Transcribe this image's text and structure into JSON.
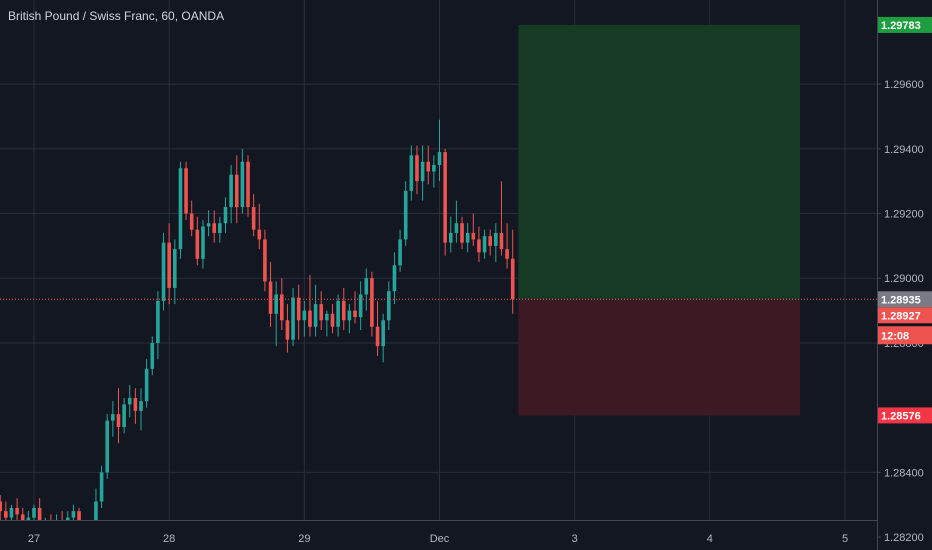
{
  "header": {
    "title": "British Pound / Swiss Franc, 60, OANDA"
  },
  "colors": {
    "up": "#26a69a",
    "down": "#ef5350",
    "background": "#131722",
    "grid": "#2a2e39",
    "profit_zone": "#163a24",
    "loss_zone": "#3d1a23",
    "target": "#1e9e3e",
    "stop": "#f23645",
    "last": "#787b86"
  },
  "chart_data": {
    "type": "candlestick",
    "title": "British Pound / Swiss Franc, 60, OANDA",
    "y_ticks": [
      1.282,
      1.284,
      1.288,
      1.29,
      1.292,
      1.294,
      1.296
    ],
    "y_tick_labels": [
      "1.28200",
      "1.28400",
      "1.28800",
      "1.29000",
      "1.29200",
      "1.29400",
      "1.29600"
    ],
    "x_ticks": [
      {
        "label": "27",
        "x": 0
      },
      {
        "label": "28",
        "x": 24
      },
      {
        "label": "29",
        "x": 48
      },
      {
        "label": "Dec",
        "x": 72
      },
      {
        "label": "3",
        "x": 96
      },
      {
        "label": "4",
        "x": 120
      },
      {
        "label": "5",
        "x": 144
      }
    ],
    "ylim": [
      1.2816,
      1.2986
    ],
    "xlim": [
      -6,
      150
    ],
    "candles": [
      [
        -6,
        1.2831,
        1.2833,
        1.2825,
        1.2828
      ],
      [
        -5,
        1.2828,
        1.2831,
        1.2823,
        1.2826
      ],
      [
        -4,
        1.2826,
        1.283,
        1.2821,
        1.2829
      ],
      [
        -3,
        1.2829,
        1.2832,
        1.2825,
        1.2827
      ],
      [
        -2,
        1.2827,
        1.2829,
        1.2821,
        1.2823
      ],
      [
        -1,
        1.2823,
        1.2828,
        1.282,
        1.2826
      ],
      [
        0,
        1.2826,
        1.283,
        1.2824,
        1.2829
      ],
      [
        1,
        1.2829,
        1.2832,
        1.282,
        1.2822
      ],
      [
        2,
        1.2822,
        1.2826,
        1.2818,
        1.2824
      ],
      [
        3,
        1.2824,
        1.2827,
        1.282,
        1.2822
      ],
      [
        4,
        1.2822,
        1.2827,
        1.2819,
        1.2825
      ],
      [
        5,
        1.2825,
        1.2828,
        1.2822,
        1.2823
      ],
      [
        6,
        1.2823,
        1.2828,
        1.2819,
        1.2826
      ],
      [
        7,
        1.2826,
        1.283,
        1.2823,
        1.2828
      ],
      [
        8,
        1.2828,
        1.2829,
        1.2818,
        1.282
      ],
      [
        9,
        1.282,
        1.2822,
        1.2815,
        1.2818
      ],
      [
        10,
        1.2818,
        1.2823,
        1.2816,
        1.2821
      ],
      [
        11,
        1.2821,
        1.2835,
        1.2817,
        1.2831
      ],
      [
        12,
        1.2831,
        1.2842,
        1.2829,
        1.284
      ],
      [
        13,
        1.284,
        1.2858,
        1.2838,
        1.2856
      ],
      [
        14,
        1.2856,
        1.2862,
        1.2851,
        1.2858
      ],
      [
        15,
        1.2858,
        1.2866,
        1.2849,
        1.2854
      ],
      [
        16,
        1.2854,
        1.2863,
        1.2852,
        1.2861
      ],
      [
        17,
        1.2861,
        1.2867,
        1.2857,
        1.2863
      ],
      [
        18,
        1.2863,
        1.2866,
        1.2855,
        1.2859
      ],
      [
        19,
        1.2859,
        1.2866,
        1.2853,
        1.2862
      ],
      [
        20,
        1.2862,
        1.2875,
        1.286,
        1.2872
      ],
      [
        21,
        1.2872,
        1.2882,
        1.287,
        1.288
      ],
      [
        22,
        1.288,
        1.2896,
        1.2875,
        1.2893
      ],
      [
        23,
        1.2893,
        1.2914,
        1.289,
        1.2911
      ],
      [
        24,
        1.2911,
        1.2917,
        1.2892,
        1.2897
      ],
      [
        25,
        1.2897,
        1.2912,
        1.2892,
        1.2909
      ],
      [
        26,
        1.2909,
        1.2936,
        1.2906,
        1.2934
      ],
      [
        27,
        1.2934,
        1.2936,
        1.2918,
        1.292
      ],
      [
        28,
        1.292,
        1.2924,
        1.2913,
        1.2915
      ],
      [
        29,
        1.2915,
        1.2919,
        1.2904,
        1.2906
      ],
      [
        30,
        1.2906,
        1.2918,
        1.2903,
        1.2916
      ],
      [
        31,
        1.2916,
        1.2921,
        1.2913,
        1.2917
      ],
      [
        32,
        1.2917,
        1.2921,
        1.2911,
        1.2914
      ],
      [
        33,
        1.2914,
        1.2919,
        1.2911,
        1.2917
      ],
      [
        34,
        1.2917,
        1.2925,
        1.2914,
        1.2922
      ],
      [
        35,
        1.2922,
        1.2935,
        1.2917,
        1.2932
      ],
      [
        36,
        1.2932,
        1.2938,
        1.2917,
        1.2922
      ],
      [
        37,
        1.2922,
        1.294,
        1.292,
        1.2936
      ],
      [
        38,
        1.2936,
        1.2938,
        1.2919,
        1.2922
      ],
      [
        39,
        1.2922,
        1.2926,
        1.2913,
        1.2915
      ],
      [
        40,
        1.2915,
        1.2923,
        1.2909,
        1.2912
      ],
      [
        41,
        1.2912,
        1.2915,
        1.2896,
        1.2899
      ],
      [
        42,
        1.2899,
        1.2905,
        1.2885,
        1.2889
      ],
      [
        43,
        1.2889,
        1.2899,
        1.2879,
        1.2895
      ],
      [
        44,
        1.2895,
        1.29,
        1.2884,
        1.2887
      ],
      [
        45,
        1.2887,
        1.2892,
        1.2877,
        1.2881
      ],
      [
        46,
        1.2881,
        1.2897,
        1.2879,
        1.2894
      ],
      [
        47,
        1.2894,
        1.2898,
        1.2881,
        1.2887
      ],
      [
        48,
        1.2887,
        1.2893,
        1.2882,
        1.289
      ],
      [
        49,
        1.289,
        1.2901,
        1.2882,
        1.2885
      ],
      [
        50,
        1.2885,
        1.2898,
        1.2882,
        1.2892
      ],
      [
        51,
        1.2892,
        1.2896,
        1.2884,
        1.2887
      ],
      [
        52,
        1.2887,
        1.289,
        1.2882,
        1.2889
      ],
      [
        53,
        1.2889,
        1.2892,
        1.2883,
        1.2885
      ],
      [
        54,
        1.2885,
        1.2895,
        1.2882,
        1.2893
      ],
      [
        55,
        1.2893,
        1.2897,
        1.2884,
        1.2887
      ],
      [
        56,
        1.2887,
        1.2892,
        1.2883,
        1.289
      ],
      [
        57,
        1.289,
        1.2896,
        1.2886,
        1.2888
      ],
      [
        58,
        1.2888,
        1.2899,
        1.2884,
        1.2895
      ],
      [
        59,
        1.2895,
        1.2903,
        1.289,
        1.29
      ],
      [
        60,
        1.29,
        1.2902,
        1.2882,
        1.2885
      ],
      [
        61,
        1.2885,
        1.2893,
        1.2876,
        1.2879
      ],
      [
        62,
        1.2879,
        1.2889,
        1.2874,
        1.2887
      ],
      [
        63,
        1.2887,
        1.2899,
        1.2884,
        1.2896
      ],
      [
        64,
        1.2896,
        1.2908,
        1.2892,
        1.2904
      ],
      [
        65,
        1.2904,
        1.2915,
        1.2902,
        1.2912
      ],
      [
        66,
        1.2912,
        1.293,
        1.291,
        1.2927
      ],
      [
        67,
        1.2927,
        1.2941,
        1.2924,
        1.2938
      ],
      [
        68,
        1.2938,
        1.2941,
        1.2926,
        1.293
      ],
      [
        69,
        1.293,
        1.2941,
        1.2924,
        1.2936
      ],
      [
        70,
        1.2936,
        1.2941,
        1.2929,
        1.2933
      ],
      [
        71,
        1.2933,
        1.2938,
        1.2928,
        1.2935
      ],
      [
        72,
        1.2935,
        1.2949,
        1.293,
        1.2939
      ],
      [
        73,
        1.2939,
        1.294,
        1.2907,
        1.2911
      ],
      [
        74,
        1.2911,
        1.2919,
        1.2908,
        1.2914
      ],
      [
        75,
        1.2914,
        1.2924,
        1.2911,
        1.2917
      ],
      [
        76,
        1.2917,
        1.2919,
        1.2909,
        1.2911
      ],
      [
        77,
        1.2911,
        1.2917,
        1.2908,
        1.2914
      ],
      [
        78,
        1.2914,
        1.292,
        1.291,
        1.2912
      ],
      [
        79,
        1.2912,
        1.2916,
        1.2905,
        1.2908
      ],
      [
        80,
        1.2908,
        1.2915,
        1.2906,
        1.2913
      ],
      [
        81,
        1.2913,
        1.2915,
        1.2907,
        1.291
      ],
      [
        82,
        1.291,
        1.2917,
        1.2905,
        1.2914
      ],
      [
        83,
        1.2914,
        1.293,
        1.2907,
        1.2909
      ],
      [
        84,
        1.2909,
        1.2917,
        1.2903,
        1.2906
      ],
      [
        85,
        1.2906,
        1.2915,
        1.2889,
        1.28935
      ]
    ],
    "annotations": {
      "current_price": {
        "value": 1.28935,
        "label": "1.28935"
      },
      "bid_price": {
        "value": 1.28927,
        "label": "1.28927"
      },
      "countdown": "12:08",
      "take_profit": {
        "value": 1.29783,
        "label": "1.29783"
      },
      "stop_loss": {
        "value": 1.28576,
        "label": "1.28576"
      },
      "position": {
        "entry": 1.28935,
        "x_start": 86,
        "x_end": 136
      }
    }
  }
}
